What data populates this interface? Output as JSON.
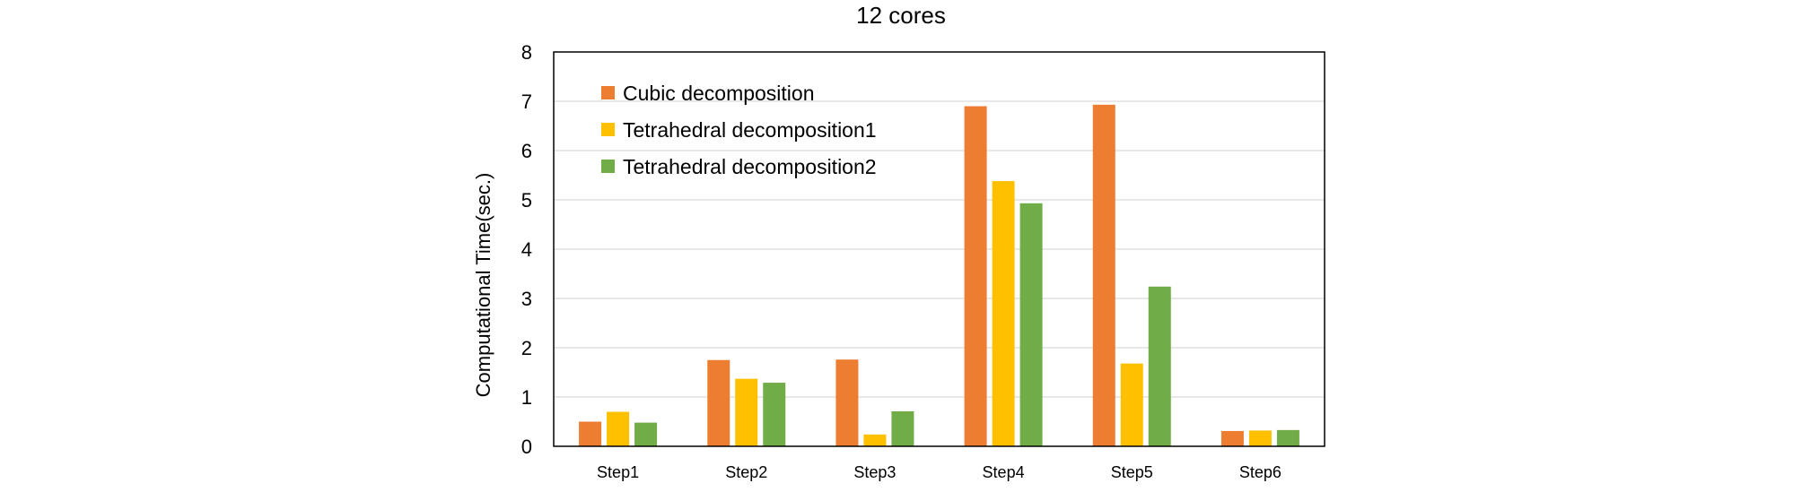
{
  "chart_data": {
    "type": "bar",
    "title": "12 cores",
    "xlabel": "",
    "ylabel": "Computational Time(sec.)",
    "ylim": [
      0,
      8
    ],
    "yticks": [
      0,
      1,
      2,
      3,
      4,
      5,
      6,
      7,
      8
    ],
    "categories": [
      "Step1",
      "Step2",
      "Step3",
      "Step4",
      "Step5",
      "Step6"
    ],
    "series": [
      {
        "name": "Cubic decomposition",
        "color": "#ED7D31",
        "values": [
          0.5,
          1.75,
          1.76,
          6.9,
          6.93,
          0.31
        ]
      },
      {
        "name": "Tetrahedral decomposition1",
        "color": "#FFC000",
        "values": [
          0.7,
          1.37,
          0.24,
          5.38,
          1.68,
          0.32
        ]
      },
      {
        "name": "Tetrahedral decomposition2",
        "color": "#70AD47",
        "values": [
          0.48,
          1.29,
          0.71,
          4.93,
          3.24,
          0.33
        ]
      }
    ],
    "grid": true,
    "legend": "top-left"
  }
}
